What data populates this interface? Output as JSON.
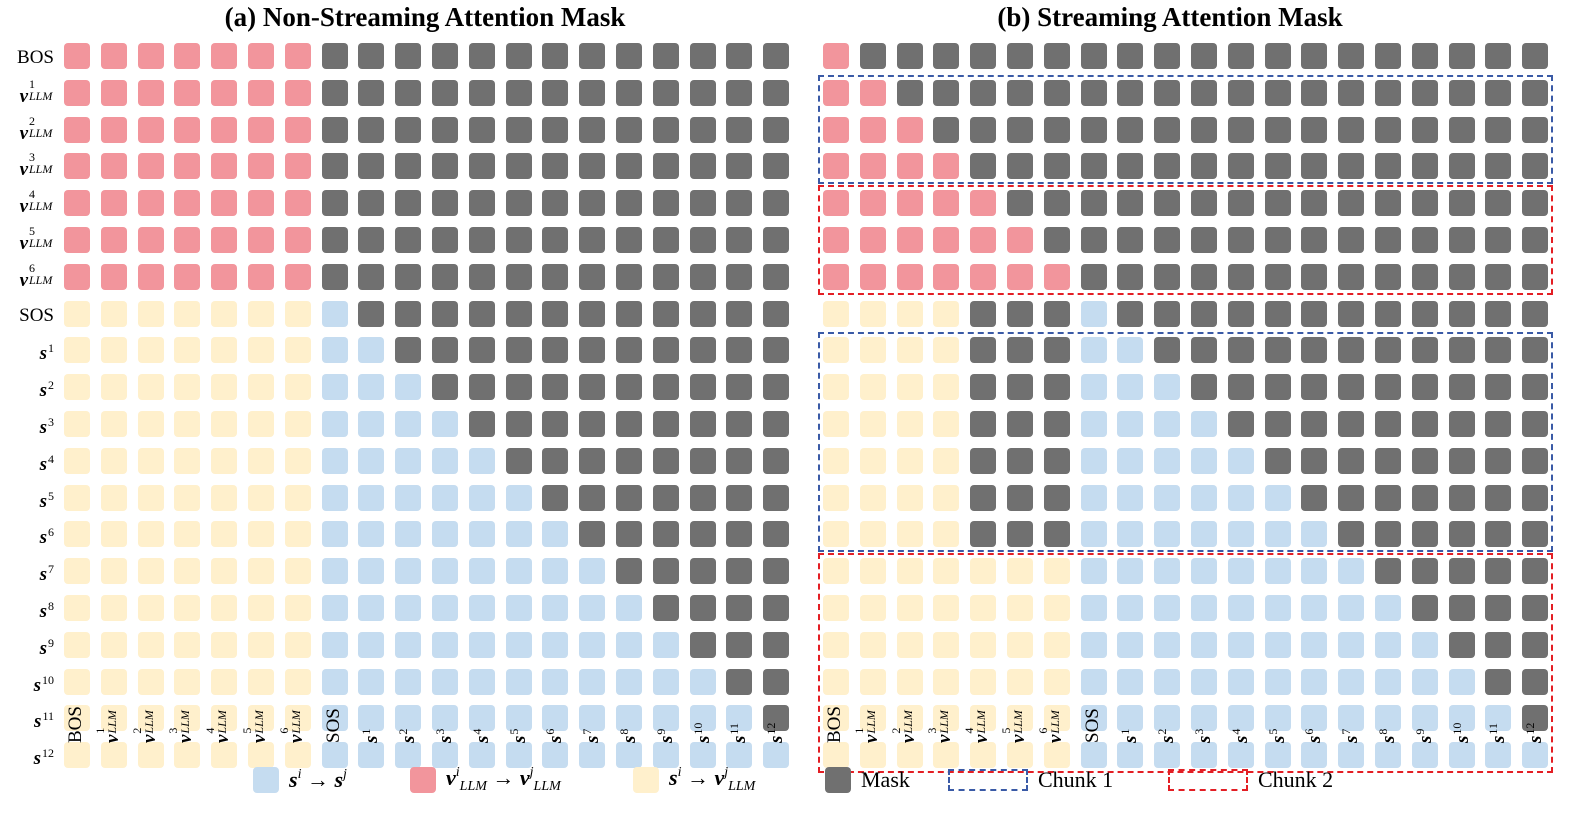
{
  "titles": {
    "left": "(a) Non-Streaming Attention Mask",
    "right": "(b) Streaming Attention Mask"
  },
  "tokens": [
    "BOS",
    "v1",
    "v2",
    "v3",
    "v4",
    "v5",
    "v6",
    "SOS",
    "s1",
    "s2",
    "s3",
    "s4",
    "s5",
    "s6",
    "s7",
    "s8",
    "s9",
    "s10",
    "s11",
    "s12"
  ],
  "token_labels": {
    "BOS": "BOS",
    "SOS": "SOS",
    "v_base": "v",
    "v_sub": "LLM",
    "s_base": "s",
    "sup": [
      "1",
      "2",
      "3",
      "4",
      "5",
      "6",
      "7",
      "8",
      "9",
      "10",
      "11",
      "12"
    ]
  },
  "colors": {
    "s_to_s": "#c5dcf0",
    "v_to_v": "#f2959c",
    "s_to_v": "#fff0cc",
    "mask": "#707070",
    "chunk1": "#3a5aa6",
    "chunk2": "#e31e24"
  },
  "chart_data": [
    {
      "type": "heatmap",
      "title": "(a) Non-Streaming Attention Mask",
      "rows": [
        "BOS",
        "v1",
        "v2",
        "v3",
        "v4",
        "v5",
        "v6",
        "SOS",
        "s1",
        "s2",
        "s3",
        "s4",
        "s5",
        "s6",
        "s7",
        "s8",
        "s9",
        "s10",
        "s11",
        "s12"
      ],
      "cols": [
        "BOS",
        "v1",
        "v2",
        "v3",
        "v4",
        "v5",
        "v6",
        "SOS",
        "s1",
        "s2",
        "s3",
        "s4",
        "s5",
        "s6",
        "s7",
        "s8",
        "s9",
        "s10",
        "s11",
        "s12"
      ],
      "legend": {
        "V": "v→v",
        "Y": "s→v",
        "B": "s→s",
        "M": "Mask"
      },
      "matrix": [
        "VVVVVVVMMMMMMMMMMMMM",
        "VVVVVVVMMMMMMMMMMMMM",
        "VVVVVVVMMMMMMMMMMMMM",
        "VVVVVVVMMMMMMMMMMMMM",
        "VVVVVVVMMMMMMMMMMMMM",
        "VVVVVVVMMMMMMMMMMMMM",
        "VVVVVVVMMMMMMMMMMMMM",
        "YYYYYYYBMMMMMMMMMMMM",
        "YYYYYYYBBMMMMMMMMMMM",
        "YYYYYYYBBBMMMMMMMMMM",
        "YYYYYYYBBBBMMMMMMMMM",
        "YYYYYYYBBBBBMMMMMMMM",
        "YYYYYYYBBBBBBMMMMMMM",
        "YYYYYYYBBBBBBBMMMMMM",
        "YYYYYYYBBBBBBBBMMMMM",
        "YYYYYYYBBBBBBBBBMMMM",
        "YYYYYYYBBBBBBBBBBMMM",
        "YYYYYYYBBBBBBBBBBBMM",
        "YYYYYYYBBBBBBBBBBBBM",
        "YYYYYYYBBBBBBBBBBBBB"
      ]
    },
    {
      "type": "heatmap",
      "title": "(b) Streaming Attention Mask",
      "rows": [
        "BOS",
        "v1",
        "v2",
        "v3",
        "v4",
        "v5",
        "v6",
        "SOS",
        "s1",
        "s2",
        "s3",
        "s4",
        "s5",
        "s6",
        "s7",
        "s8",
        "s9",
        "s10",
        "s11",
        "s12"
      ],
      "cols": [
        "BOS",
        "v1",
        "v2",
        "v3",
        "v4",
        "v5",
        "v6",
        "SOS",
        "s1",
        "s2",
        "s3",
        "s4",
        "s5",
        "s6",
        "s7",
        "s8",
        "s9",
        "s10",
        "s11",
        "s12"
      ],
      "legend": {
        "V": "v→v",
        "Y": "s→v",
        "B": "s→s",
        "M": "Mask"
      },
      "matrix": [
        "VMMMMMMMMMMMMMMMMMMM",
        "VVMMMMMMMMMMMMMMMMMM",
        "VVVMMMMMMMMMMMMMMMMM",
        "VVVVMMMMMMMMMMMMMMMM",
        "VVVVVMMMMMMMMMMMMMMM",
        "VVVVVVMMMMMMMMMMMMMM",
        "VVVVVVVMMMMMMMMMMMMM",
        "YYYYMMMBMMMMMMMMMMMM",
        "YYYYMMMBBMMMMMMMMMMM",
        "YYYYMMMBBBMMMMMMMMMM",
        "YYYYMMMBBBBMMMMMMMMM",
        "YYYYMMMBBBBBMMMMMMMM",
        "YYYYMMMBBBBBBMMMMMMM",
        "YYYYMMMBBBBBBBMMMMMM",
        "YYYYYYYBBBBBBBBMMMMM",
        "YYYYYYYBBBBBBBBBMMMM",
        "YYYYYYYBBBBBBBBBBMMM",
        "YYYYYYYBBBBBBBBBBBMM",
        "YYYYYYYBBBBBBBBBBBBM",
        "YYYYYYYBBBBBBBBBBBBB"
      ],
      "chunks": [
        {
          "label": "Chunk 1",
          "color": "blue",
          "rows": [
            "v1",
            "v3"
          ]
        },
        {
          "label": "Chunk 2",
          "color": "red",
          "rows": [
            "v4",
            "v6"
          ]
        },
        {
          "label": "Chunk 1",
          "color": "blue",
          "rows": [
            "s1",
            "s6"
          ]
        },
        {
          "label": "Chunk 2",
          "color": "red",
          "rows": [
            "s7",
            "s12"
          ]
        }
      ]
    }
  ],
  "legend": {
    "s_to_s": "sᵢ → sʲ",
    "v_to_v": "vᵢ LLM → vʲ LLM",
    "s_to_v": "sᵢ → vʲ LLM",
    "mask": "Mask",
    "chunk1": "Chunk 1",
    "chunk2": "Chunk 2"
  }
}
